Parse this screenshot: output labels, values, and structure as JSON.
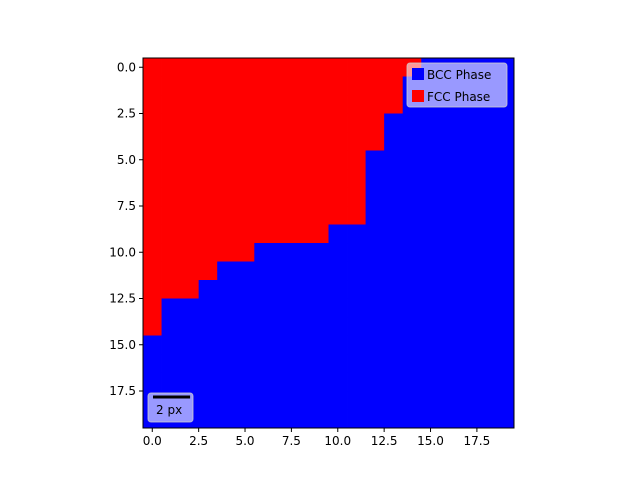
{
  "chart_data": {
    "type": "heatmap",
    "title": "",
    "xlabel": "",
    "ylabel": "",
    "xlim": [
      -0.5,
      19.5
    ],
    "ylim": [
      19.5,
      -0.5
    ],
    "y_inverted": true,
    "x_ticks": [
      0.0,
      2.5,
      5.0,
      7.5,
      10.0,
      12.5,
      15.0,
      17.5
    ],
    "x_tick_labels": [
      "0.0",
      "2.5",
      "5.0",
      "7.5",
      "10.0",
      "12.5",
      "15.0",
      "17.5"
    ],
    "y_ticks": [
      0.0,
      2.5,
      5.0,
      7.5,
      10.0,
      12.5,
      15.0,
      17.5
    ],
    "y_tick_labels": [
      "0.0",
      "2.5",
      "5.0",
      "7.5",
      "10.0",
      "12.5",
      "15.0",
      "17.5"
    ],
    "grid": false,
    "rows": 20,
    "cols": 20,
    "phase_values": {
      "BCC": 0,
      "FCC": 1
    },
    "fcc_columns_per_row": [
      15,
      14,
      14,
      13,
      13,
      12,
      12,
      12,
      12,
      10,
      6,
      4,
      3,
      1,
      1,
      0,
      0,
      0,
      0,
      0
    ],
    "legend": {
      "placement": "upper right",
      "entries": [
        {
          "label": "BCC Phase",
          "color": "#0000ff"
        },
        {
          "label": "FCC Phase",
          "color": "#ff0000"
        }
      ]
    },
    "scale_bar": {
      "length": 2,
      "label": "2 px",
      "placement": "lower left"
    }
  }
}
